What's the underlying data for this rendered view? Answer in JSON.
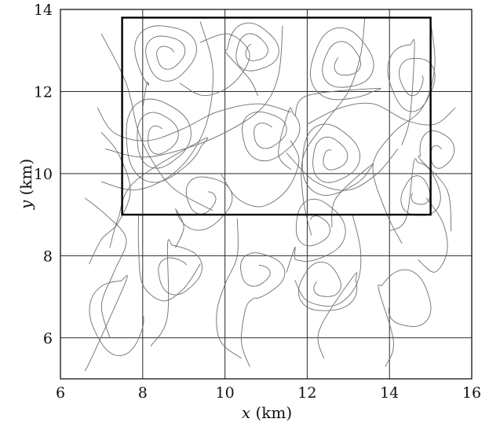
{
  "chart_data": {
    "type": "line",
    "xlabel_var": "x",
    "xlabel_unit": " (km)",
    "ylabel_var": "y",
    "ylabel_unit": " (km)",
    "xlim": [
      6,
      16
    ],
    "ylim": [
      5,
      14
    ],
    "xticks": [
      6,
      8,
      10,
      12,
      14,
      16
    ],
    "yticks": [
      6,
      8,
      10,
      12,
      14
    ],
    "grid": true,
    "trajectory_color": "#6e6e6e",
    "rectangle": {
      "x0": 7.5,
      "x1": 15.0,
      "y0": 9.0,
      "y1": 13.8,
      "color": "#000000"
    },
    "trajectories": [
      {
        "cx": 8.6,
        "cy": 12.9,
        "r0": 0.15,
        "r1": 0.85,
        "turns": 2.6,
        "aspect": 1.0,
        "dir": 1,
        "ph": 0.4,
        "tail": [
          [
            8.1,
            12.2
          ],
          [
            8.0,
            11.6
          ]
        ]
      },
      {
        "cx": 8.4,
        "cy": 10.9,
        "r0": 0.2,
        "r1": 1.0,
        "turns": 2.8,
        "aspect": 1.15,
        "dir": 1,
        "ph": 1.2,
        "tail": [
          [
            7.8,
            9.8
          ],
          [
            7.4,
            8.9
          ],
          [
            7.2,
            8.2
          ]
        ]
      },
      {
        "cx": 10.7,
        "cy": 13.0,
        "r0": 0.15,
        "r1": 0.7,
        "turns": 2.2,
        "aspect": 1.0,
        "dir": 1,
        "ph": 2.0,
        "tail": [
          [
            10.6,
            12.3
          ],
          [
            10.8,
            11.9
          ]
        ]
      },
      {
        "cx": 11.0,
        "cy": 11.0,
        "r0": 0.2,
        "r1": 0.8,
        "turns": 2.0,
        "aspect": 0.95,
        "dir": 1,
        "ph": 0.8,
        "tail": [
          [
            11.3,
            10.5
          ],
          [
            11.6,
            10.1
          ]
        ]
      },
      {
        "cx": 12.9,
        "cy": 12.7,
        "r0": 0.2,
        "r1": 0.95,
        "turns": 2.5,
        "aspect": 1.05,
        "dir": 1,
        "ph": 2.5,
        "tail": [
          [
            12.0,
            11.9
          ],
          [
            11.7,
            11.4
          ]
        ]
      },
      {
        "cx": 12.6,
        "cy": 10.4,
        "r0": 0.15,
        "r1": 0.9,
        "turns": 2.7,
        "aspect": 1.1,
        "dir": 1,
        "ph": 1.7,
        "tail": [
          [
            12.7,
            9.4
          ],
          [
            12.6,
            8.7
          ]
        ]
      },
      {
        "cx": 14.6,
        "cy": 12.3,
        "r0": 0.2,
        "r1": 0.7,
        "turns": 1.8,
        "aspect": 1.3,
        "dir": -1,
        "ph": 0.3,
        "tail": [
          [
            14.5,
            11.4
          ],
          [
            14.3,
            10.7
          ]
        ]
      },
      {
        "cx": 14.7,
        "cy": 9.5,
        "r0": 0.15,
        "r1": 0.6,
        "turns": 1.8,
        "aspect": 1.2,
        "dir": 1,
        "ph": 3.0,
        "tail": [
          [
            14.4,
            8.9
          ],
          [
            14.0,
            8.6
          ]
        ]
      },
      {
        "cx": 9.5,
        "cy": 9.4,
        "r0": 0.2,
        "r1": 0.8,
        "turns": 1.6,
        "aspect": 1.0,
        "dir": -1,
        "ph": 1.0,
        "tail": [
          [
            9.0,
            8.7
          ],
          [
            8.8,
            8.2
          ]
        ]
      },
      {
        "cx": 12.2,
        "cy": 8.7,
        "r0": 0.2,
        "r1": 0.8,
        "turns": 1.7,
        "aspect": 1.1,
        "dir": -1,
        "ph": 2.2,
        "tail": [
          [
            11.7,
            8.2
          ],
          [
            11.5,
            7.6
          ]
        ]
      },
      {
        "cx": 8.8,
        "cy": 7.6,
        "r0": 0.3,
        "r1": 0.7,
        "turns": 1.2,
        "aspect": 1.0,
        "dir": 1,
        "ph": 0.6,
        "tail": [
          [
            8.6,
            6.5
          ],
          [
            8.2,
            5.8
          ]
        ]
      },
      {
        "cx": 10.8,
        "cy": 7.6,
        "r0": 0.2,
        "r1": 0.7,
        "turns": 1.5,
        "aspect": 0.9,
        "dir": -1,
        "ph": 1.4,
        "tail": [
          [
            10.5,
            6.7
          ],
          [
            10.4,
            5.9
          ],
          [
            10.6,
            5.3
          ]
        ]
      },
      {
        "cx": 12.4,
        "cy": 7.3,
        "r0": 0.2,
        "r1": 0.8,
        "turns": 1.6,
        "aspect": 1.0,
        "dir": 1,
        "ph": 2.8,
        "tail": [
          [
            12.3,
            6.2
          ],
          [
            12.4,
            5.5
          ]
        ]
      },
      {
        "cx": 14.4,
        "cy": 6.8,
        "r0": 0.4,
        "r1": 0.8,
        "turns": 0.9,
        "aspect": 1.1,
        "dir": 1,
        "ph": 3.3,
        "tail": [
          [
            14.1,
            5.9
          ],
          [
            13.9,
            5.3
          ]
        ]
      },
      {
        "cx": 7.5,
        "cy": 6.4,
        "r0": 0.5,
        "r1": 0.9,
        "turns": 0.8,
        "aspect": 1.2,
        "dir": -1,
        "ph": 0.2,
        "tail": [
          [
            6.8,
            5.6
          ],
          [
            6.6,
            5.2
          ]
        ]
      },
      {
        "cx": 15.2,
        "cy": 10.5,
        "r0": 0.1,
        "r1": 0.5,
        "turns": 1.4,
        "aspect": 1.3,
        "dir": 1,
        "ph": 0.9,
        "tail": [
          [
            15.4,
            9.6
          ],
          [
            15.5,
            8.6
          ]
        ]
      }
    ],
    "streams": [
      [
        [
          7.0,
          13.4
        ],
        [
          7.6,
          12.2
        ],
        [
          7.9,
          11.0
        ],
        [
          8.3,
          10.2
        ],
        [
          8.8,
          9.6
        ],
        [
          9.7,
          9.1
        ]
      ],
      [
        [
          9.4,
          13.7
        ],
        [
          9.7,
          12.6
        ],
        [
          9.6,
          11.4
        ],
        [
          9.2,
          10.5
        ],
        [
          8.6,
          9.9
        ],
        [
          7.8,
          9.6
        ],
        [
          7.0,
          9.8
        ]
      ],
      [
        [
          11.4,
          13.6
        ],
        [
          11.3,
          12.4
        ],
        [
          10.9,
          11.6
        ],
        [
          10.0,
          11.0
        ],
        [
          9.0,
          10.6
        ],
        [
          8.0,
          10.4
        ],
        [
          7.1,
          10.6
        ]
      ],
      [
        [
          13.4,
          13.8
        ],
        [
          13.3,
          12.9
        ],
        [
          13.0,
          12.0
        ],
        [
          12.4,
          11.2
        ],
        [
          11.9,
          10.4
        ],
        [
          11.9,
          9.4
        ],
        [
          12.1,
          8.5
        ]
      ],
      [
        [
          15.0,
          13.7
        ],
        [
          15.1,
          12.6
        ],
        [
          14.8,
          11.6
        ],
        [
          14.1,
          11.0
        ],
        [
          13.6,
          10.2
        ],
        [
          13.9,
          9.1
        ],
        [
          14.3,
          8.3
        ]
      ],
      [
        [
          6.9,
          11.6
        ],
        [
          7.3,
          11.0
        ],
        [
          8.1,
          10.8
        ],
        [
          9.0,
          11.1
        ],
        [
          9.8,
          11.5
        ],
        [
          10.8,
          11.7
        ],
        [
          11.6,
          11.5
        ]
      ],
      [
        [
          12.0,
          11.2
        ],
        [
          12.8,
          11.6
        ],
        [
          13.6,
          11.7
        ],
        [
          14.4,
          11.3
        ],
        [
          15.1,
          11.2
        ],
        [
          15.6,
          11.6
        ]
      ],
      [
        [
          9.9,
          10.0
        ],
        [
          10.3,
          9.4
        ],
        [
          10.9,
          9.2
        ],
        [
          11.5,
          9.6
        ],
        [
          11.8,
          10.3
        ],
        [
          11.6,
          10.8
        ]
      ],
      [
        [
          7.9,
          9.0
        ],
        [
          7.9,
          8.2
        ],
        [
          8.0,
          7.3
        ],
        [
          8.5,
          6.9
        ],
        [
          9.0,
          7.2
        ],
        [
          9.4,
          7.8
        ]
      ],
      [
        [
          10.3,
          8.9
        ],
        [
          10.3,
          8.0
        ],
        [
          10.0,
          7.3
        ],
        [
          9.8,
          6.6
        ],
        [
          9.9,
          5.9
        ],
        [
          10.4,
          5.5
        ]
      ],
      [
        [
          13.1,
          9.0
        ],
        [
          13.3,
          8.1
        ],
        [
          13.2,
          7.3
        ],
        [
          12.7,
          6.8
        ],
        [
          12.0,
          6.9
        ],
        [
          11.7,
          7.4
        ]
      ],
      [
        [
          14.9,
          9.4
        ],
        [
          15.3,
          8.8
        ],
        [
          15.4,
          8.1
        ],
        [
          15.1,
          7.6
        ],
        [
          14.7,
          7.9
        ]
      ],
      [
        [
          6.7,
          7.8
        ],
        [
          7.0,
          8.4
        ],
        [
          7.4,
          8.8
        ],
        [
          7.7,
          9.6
        ],
        [
          7.4,
          10.5
        ],
        [
          7.0,
          11.0
        ]
      ],
      [
        [
          6.6,
          9.4
        ],
        [
          7.1,
          9.0
        ],
        [
          7.6,
          8.4
        ],
        [
          7.3,
          7.6
        ],
        [
          7.0,
          6.8
        ],
        [
          7.2,
          6.0
        ]
      ],
      [
        [
          11.5,
          10.5
        ],
        [
          12.2,
          9.8
        ],
        [
          13.0,
          9.6
        ],
        [
          13.7,
          10.0
        ],
        [
          14.2,
          10.6
        ]
      ],
      [
        [
          8.9,
          12.2
        ],
        [
          9.5,
          11.9
        ],
        [
          10.2,
          12.2
        ],
        [
          10.6,
          12.9
        ],
        [
          10.1,
          13.4
        ],
        [
          9.4,
          13.2
        ]
      ]
    ]
  }
}
